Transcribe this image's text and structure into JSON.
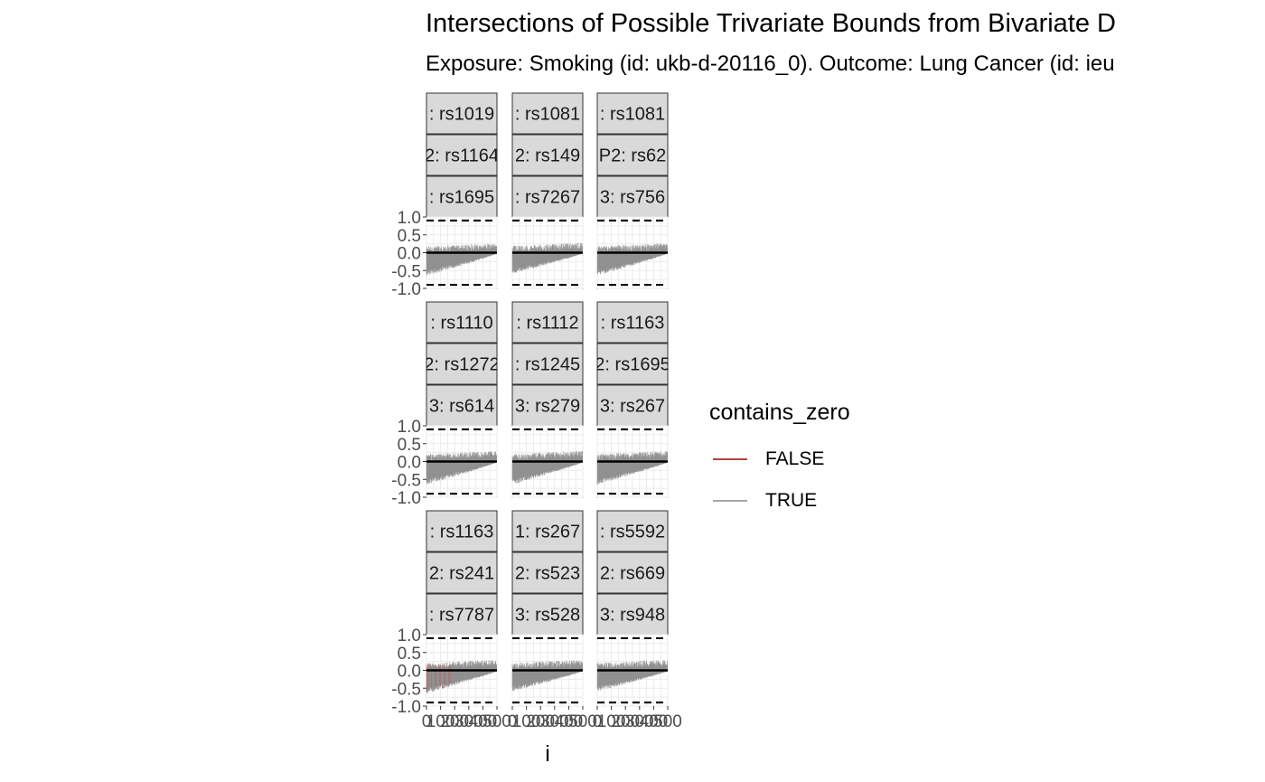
{
  "chart_data": {
    "type": "faceted-line",
    "title": "Intersections of Possible Trivariate Bounds from Bivariate D",
    "subtitle": "Exposure: Smoking (id: ukb-d-20116_0). Outcome: Lung Cancer (id: ieu",
    "xlabel": "i",
    "ylabel": "",
    "x_ticks": [
      "0",
      "100",
      "200",
      "300",
      "400",
      "500"
    ],
    "xlim": [
      0,
      500
    ],
    "y_ticks": [
      "1.0",
      "0.5",
      "0.0",
      "-0.5",
      "-1.0"
    ],
    "ylim": [
      -1.0,
      1.0
    ],
    "reference_lines": {
      "dashed": [
        0.9,
        -0.9
      ],
      "solid": [
        0.0
      ]
    },
    "legend": {
      "title": "contains_zero",
      "entries": [
        {
          "label": "FALSE",
          "color": "#b2413a"
        },
        {
          "label": "TRUE",
          "color": "#a6a6a6"
        }
      ]
    },
    "colors": {
      "panel_fill": "#ffffff",
      "grid": "#ebebeb",
      "strip_fill": "#d9d9d9",
      "strip_border": "#333333",
      "interval": "#8c8c8c"
    },
    "facets": [
      {
        "strips": [
          ": rs1019",
          "2: rs1164",
          ": rs1695"
        ],
        "upper": 0.13,
        "lower_start": -0.55,
        "false_frac": 0.0
      },
      {
        "strips": [
          ": rs1081",
          "2: rs149",
          ": rs7267"
        ],
        "upper": 0.14,
        "lower_start": -0.5,
        "false_frac": 0.01
      },
      {
        "strips": [
          ": rs1081",
          "P2: rs62",
          "3: rs756"
        ],
        "upper": 0.13,
        "lower_start": -0.55,
        "false_frac": 0.0
      },
      {
        "strips": [
          ": rs1110",
          "2: rs1272",
          "3: rs614"
        ],
        "upper": 0.16,
        "lower_start": -0.55,
        "false_frac": 0.0
      },
      {
        "strips": [
          ": rs1112",
          ": rs1245",
          "3: rs279"
        ],
        "upper": 0.16,
        "lower_start": -0.55,
        "false_frac": 0.0
      },
      {
        "strips": [
          ": rs1163",
          "2: rs1695",
          "3: rs267"
        ],
        "upper": 0.16,
        "lower_start": -0.55,
        "false_frac": 0.0
      },
      {
        "strips": [
          ": rs1163",
          "2: rs241",
          ": rs7787"
        ],
        "upper": 0.16,
        "lower_start": -0.55,
        "false_frac": 0.35
      },
      {
        "strips": [
          "1: rs267",
          "2: rs523",
          "3: rs528"
        ],
        "upper": 0.16,
        "lower_start": -0.5,
        "false_frac": 0.0
      },
      {
        "strips": [
          ": rs5592",
          "2: rs669",
          "3: rs948"
        ],
        "upper": 0.16,
        "lower_start": -0.5,
        "false_frac": 0.0
      }
    ]
  }
}
